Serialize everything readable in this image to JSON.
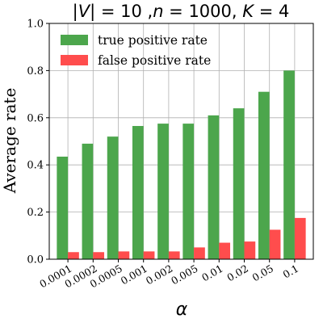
{
  "chart_data": {
    "type": "bar",
    "title": {
      "parts": [
        {
          "text": "|",
          "italic": false
        },
        {
          "text": "V",
          "italic": true
        },
        {
          "text": "| = 10 ,",
          "italic": false
        },
        {
          "text": "n",
          "italic": true
        },
        {
          "text": " = 1000, ",
          "italic": false
        },
        {
          "text": "K",
          "italic": true
        },
        {
          "text": " = 4",
          "italic": false
        }
      ]
    },
    "xlabel": "α",
    "ylabel": "Average rate",
    "ylim": [
      0,
      1.0
    ],
    "yticks": [
      "0.0",
      "0.2",
      "0.4",
      "0.6",
      "0.8",
      "1.0"
    ],
    "categories": [
      "0.0001",
      "0.0002",
      "0.0005",
      "0.001",
      "0.002",
      "0.005",
      "0.01",
      "0.02",
      "0.05",
      "0.1"
    ],
    "grid": true,
    "legend_position": "top-left",
    "series": [
      {
        "name": "true positive rate",
        "color": "#4ca64c",
        "values": [
          0.435,
          0.49,
          0.52,
          0.565,
          0.575,
          0.575,
          0.61,
          0.64,
          0.71,
          0.8
        ]
      },
      {
        "name": "false positive rate",
        "color": "#ff4d4d",
        "values": [
          0.03,
          0.03,
          0.033,
          0.033,
          0.033,
          0.05,
          0.07,
          0.075,
          0.125,
          0.175
        ]
      }
    ]
  }
}
